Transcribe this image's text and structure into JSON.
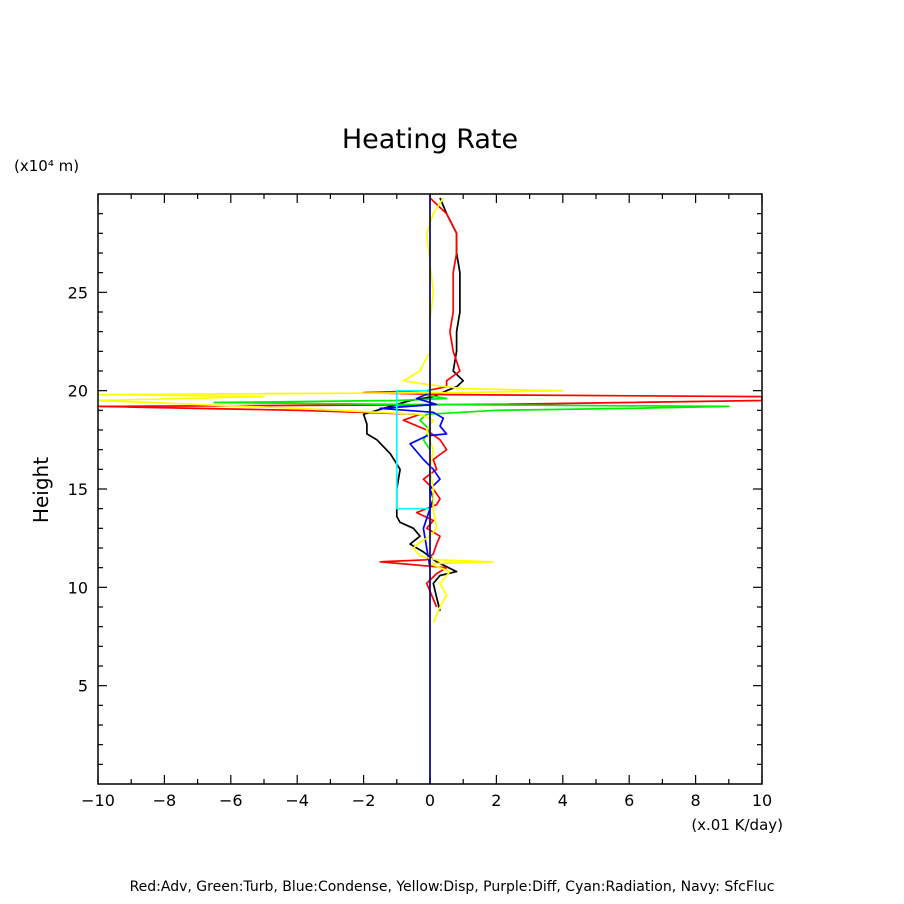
{
  "chart_data": {
    "type": "line",
    "title": "Heating Rate",
    "xlabel": "(x.01 K/day)",
    "ylabel": "Height",
    "y_unit_label": "(x10⁴ m)",
    "xlim": [
      -10,
      10
    ],
    "ylim": [
      0,
      30
    ],
    "x_ticks": [
      -10,
      -8,
      -6,
      -4,
      -2,
      0,
      2,
      4,
      6,
      8,
      10
    ],
    "x_tick_labels": [
      "−10",
      "−8",
      "−6",
      "−4",
      "−2",
      "0",
      "2",
      "4",
      "6",
      "8",
      "10"
    ],
    "y_ticks": [
      5,
      10,
      15,
      20,
      25
    ],
    "y_tick_labels": [
      "5",
      "10",
      "15",
      "20",
      "25"
    ],
    "grid": false,
    "legend_text": "Red:Adv, Green:Turb, Blue:Condense, Yellow:Disp, Purple:Diff, Cyan:Radiation, Navy: SfcFluc",
    "series": [
      {
        "color": "#000000",
        "points": [
          [
            0.3,
            8.8
          ],
          [
            0.2,
            9.5
          ],
          [
            0.1,
            10.2
          ],
          [
            0.3,
            10.6
          ],
          [
            0.8,
            10.8
          ],
          [
            0.2,
            11.3
          ],
          [
            -0.2,
            11.8
          ],
          [
            -0.6,
            12.2
          ],
          [
            -0.3,
            12.6
          ],
          [
            -0.5,
            13.0
          ],
          [
            -0.9,
            13.3
          ],
          [
            -1.0,
            13.6
          ],
          [
            -1.0,
            14.2
          ],
          [
            -1.0,
            15.0
          ],
          [
            -0.9,
            16.0
          ],
          [
            -1.2,
            16.8
          ],
          [
            -1.6,
            17.5
          ],
          [
            -1.9,
            17.8
          ],
          [
            -1.9,
            18.3
          ],
          [
            -2.0,
            18.8
          ],
          [
            -1.2,
            19.2
          ],
          [
            -0.6,
            19.5
          ],
          [
            0.1,
            19.7
          ],
          [
            0.5,
            20.0
          ],
          [
            0.8,
            20.2
          ],
          [
            1.0,
            20.5
          ],
          [
            0.7,
            21.0
          ],
          [
            0.8,
            22.0
          ],
          [
            0.8,
            23.0
          ],
          [
            0.9,
            24.0
          ],
          [
            0.9,
            25.0
          ],
          [
            0.9,
            26.0
          ],
          [
            0.8,
            27.0
          ],
          [
            0.8,
            28.0
          ],
          [
            0.5,
            29.0
          ],
          [
            0.3,
            29.8
          ]
        ]
      },
      {
        "color": "#ff0000",
        "points": [
          [
            0.2,
            9.0
          ],
          [
            -0.1,
            10.2
          ],
          [
            0.2,
            10.7
          ],
          [
            0.5,
            11.0
          ],
          [
            -1.5,
            11.3
          ],
          [
            -0.1,
            11.4
          ],
          [
            0.1,
            11.7
          ],
          [
            0.2,
            12.2
          ],
          [
            0.3,
            12.6
          ],
          [
            -0.1,
            13.0
          ],
          [
            0.1,
            13.4
          ],
          [
            -0.4,
            13.8
          ],
          [
            0.2,
            14.2
          ],
          [
            0.3,
            14.5
          ],
          [
            0.1,
            15.0
          ],
          [
            -0.2,
            15.5
          ],
          [
            0.2,
            16.0
          ],
          [
            0.1,
            16.5
          ],
          [
            0.5,
            17.0
          ],
          [
            0.3,
            17.5
          ],
          [
            -0.1,
            18.0
          ],
          [
            -0.8,
            18.5
          ],
          [
            -0.3,
            18.8
          ],
          [
            -4.0,
            19.0
          ],
          [
            -10.0,
            19.2
          ],
          [
            2.0,
            19.3
          ],
          [
            10.0,
            19.5
          ],
          [
            10.0,
            19.7
          ],
          [
            0.5,
            19.8
          ],
          [
            -2.0,
            19.9
          ],
          [
            -0.1,
            20.0
          ],
          [
            0.5,
            20.2
          ],
          [
            0.5,
            20.5
          ],
          [
            0.9,
            21.0
          ],
          [
            0.7,
            22.0
          ],
          [
            0.6,
            23.0
          ],
          [
            0.7,
            24.0
          ],
          [
            0.7,
            25.0
          ],
          [
            0.7,
            26.0
          ],
          [
            0.8,
            27.0
          ],
          [
            0.8,
            28.0
          ],
          [
            0.5,
            29.0
          ],
          [
            0.0,
            29.8
          ]
        ]
      },
      {
        "color": "#00ee00",
        "points": [
          [
            0.0,
            17.0
          ],
          [
            -0.2,
            17.5
          ],
          [
            0.0,
            18.0
          ],
          [
            -0.3,
            18.5
          ],
          [
            -0.1,
            18.8
          ],
          [
            2.0,
            19.0
          ],
          [
            6.0,
            19.1
          ],
          [
            9.0,
            19.2
          ],
          [
            -1.0,
            19.3
          ],
          [
            -6.5,
            19.4
          ],
          [
            -1.0,
            19.5
          ],
          [
            0.5,
            19.6
          ],
          [
            -0.2,
            19.8
          ],
          [
            0.0,
            20.0
          ]
        ]
      },
      {
        "color": "#0000ff",
        "points": [
          [
            0.0,
            11.0
          ],
          [
            -0.1,
            12.0
          ],
          [
            -0.2,
            13.0
          ],
          [
            0.0,
            14.0
          ],
          [
            0.1,
            14.5
          ],
          [
            0.0,
            15.0
          ],
          [
            0.3,
            15.5
          ],
          [
            0.1,
            16.0
          ],
          [
            -0.2,
            16.5
          ],
          [
            -0.6,
            17.3
          ],
          [
            -0.1,
            17.7
          ],
          [
            0.5,
            17.8
          ],
          [
            0.3,
            18.2
          ],
          [
            0.4,
            18.6
          ],
          [
            0.1,
            18.9
          ],
          [
            -1.5,
            19.1
          ],
          [
            0.2,
            19.3
          ],
          [
            -0.4,
            19.6
          ],
          [
            0.0,
            19.9
          ]
        ]
      },
      {
        "color": "#ffff00",
        "points": [
          [
            0.1,
            8.2
          ],
          [
            0.3,
            9.0
          ],
          [
            0.5,
            9.6
          ],
          [
            0.3,
            10.2
          ],
          [
            0.6,
            10.8
          ],
          [
            0.0,
            11.2
          ],
          [
            1.9,
            11.3
          ],
          [
            0.2,
            11.4
          ],
          [
            -0.3,
            11.6
          ],
          [
            -0.5,
            12.0
          ],
          [
            -0.3,
            12.3
          ],
          [
            0.0,
            12.6
          ],
          [
            0.2,
            13.0
          ],
          [
            0.1,
            14.0
          ],
          [
            0.1,
            15.0
          ],
          [
            0.0,
            16.0
          ],
          [
            0.1,
            17.0
          ],
          [
            -0.1,
            18.0
          ],
          [
            0.1,
            18.5
          ],
          [
            -0.3,
            18.8
          ],
          [
            -4.0,
            19.1
          ],
          [
            -10.0,
            19.5
          ],
          [
            -5.0,
            19.7
          ],
          [
            -10.0,
            19.8
          ],
          [
            1.0,
            19.9
          ],
          [
            4.0,
            20.0
          ],
          [
            1.0,
            20.1
          ],
          [
            0.0,
            20.3
          ],
          [
            -0.8,
            20.5
          ],
          [
            -0.3,
            21.0
          ],
          [
            0.0,
            22.0
          ],
          [
            0.0,
            23.5
          ],
          [
            0.1,
            25.0
          ],
          [
            0.0,
            26.5
          ],
          [
            -0.1,
            28.0
          ],
          [
            0.1,
            29.0
          ],
          [
            0.4,
            29.8
          ]
        ]
      },
      {
        "color": "#00ffff",
        "points": [
          [
            0.0,
            14.0
          ],
          [
            -1.0,
            14.0
          ],
          [
            -1.0,
            19.0
          ],
          [
            -1.0,
            20.0
          ],
          [
            0.0,
            20.0
          ]
        ]
      },
      {
        "color": "#000080",
        "points": [
          [
            0.0,
            0.0
          ],
          [
            0.0,
            30.0
          ]
        ]
      }
    ]
  }
}
